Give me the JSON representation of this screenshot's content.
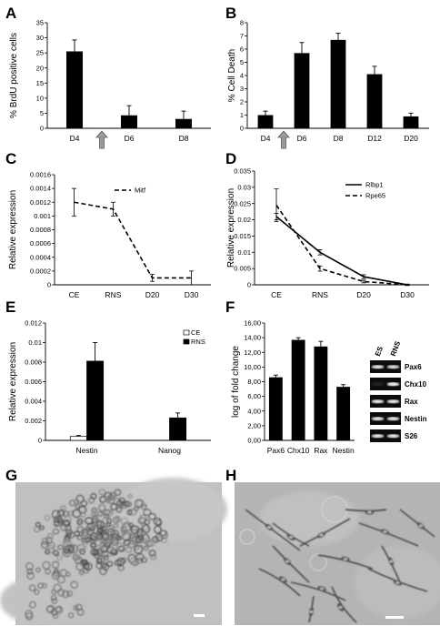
{
  "panels": [
    {
      "letter": "A"
    },
    {
      "letter": "B"
    },
    {
      "letter": "C"
    },
    {
      "letter": "D"
    },
    {
      "letter": "E"
    },
    {
      "letter": "F"
    },
    {
      "letter": "G"
    },
    {
      "letter": "H"
    }
  ],
  "chart_data": [
    {
      "id": "A",
      "type": "bar",
      "ylabel": "% BrdU positive cells",
      "categories": [
        "D4",
        "D6",
        "D8"
      ],
      "values": [
        25.5,
        4.3,
        3.1
      ],
      "errors": [
        3.8,
        3.2,
        2.6
      ],
      "ylim": [
        0,
        35
      ],
      "yticks": [
        "0",
        "5",
        "10",
        "15",
        "20",
        "25",
        "30",
        "35"
      ],
      "arrow_between": [
        "D4",
        "D6"
      ],
      "bar_color": "#000000"
    },
    {
      "id": "B",
      "type": "bar",
      "ylabel": "% Cell Death",
      "categories": [
        "D4",
        "D6",
        "D8",
        "D12",
        "D20"
      ],
      "values": [
        1.0,
        5.7,
        6.7,
        4.1,
        0.9
      ],
      "errors": [
        0.3,
        0.8,
        0.5,
        0.6,
        0.25
      ],
      "ylim": [
        0,
        8
      ],
      "yticks": [
        "0",
        "1",
        "2",
        "3",
        "4",
        "5",
        "6",
        "7",
        "8"
      ],
      "arrow_between": [
        "D4",
        "D6"
      ],
      "bar_color": "#000000"
    },
    {
      "id": "C",
      "type": "line",
      "ylabel": "Relative expression",
      "categories": [
        "CE",
        "RNS",
        "D20",
        "D30"
      ],
      "series": [
        {
          "name": "Mitf",
          "values": [
            0.0012,
            0.0011,
            0.0001,
            0.0001
          ],
          "errors": [
            0.0002,
            0.0001,
            5e-05,
            0.0001
          ],
          "dash": true
        }
      ],
      "ylim": [
        0,
        0.0016
      ],
      "yticks": [
        "0",
        "0.0002",
        "0.0004",
        "0.0006",
        "0.0008",
        "0.001",
        "0.0012",
        "0.0014",
        "0.0016"
      ]
    },
    {
      "id": "D",
      "type": "line",
      "ylabel": "Relative expression",
      "categories": [
        "CE",
        "RNS",
        "D20",
        "D30"
      ],
      "series": [
        {
          "name": "Rlbp1",
          "values": [
            0.021,
            0.01,
            0.0025,
            0.0
          ],
          "errors": [
            0.001,
            0.0008,
            0.0006,
            0.0002
          ],
          "dash": false
        },
        {
          "name": "Rpe65",
          "values": [
            0.0245,
            0.005,
            0.001,
            0.0
          ],
          "errors": [
            0.005,
            0.0008,
            0.0004,
            0.0002
          ],
          "dash": true
        }
      ],
      "ylim": [
        0,
        0.035
      ],
      "yticks": [
        "0",
        "0.005",
        "0.01",
        "0.015",
        "0.02",
        "0.025",
        "0.03",
        "0.035"
      ]
    },
    {
      "id": "E",
      "type": "bar",
      "ylabel": "Relative expression",
      "categories": [
        "Nestin",
        "Nanog"
      ],
      "series": [
        {
          "name": "CE",
          "values": [
            0.0004,
            0.0
          ],
          "errors": [
            0.0001,
            0.0
          ],
          "color": "#ffffff"
        },
        {
          "name": "RNS",
          "values": [
            0.0081,
            0.0023
          ],
          "errors": [
            0.0019,
            0.0005
          ],
          "color": "#000000"
        }
      ],
      "ylim": [
        0,
        0.012
      ],
      "yticks": [
        "0",
        "0.002",
        "0.004",
        "0.006",
        "0.008",
        "0.01",
        "0.012"
      ]
    },
    {
      "id": "F",
      "type": "bar",
      "ylabel": "log of fold change",
      "categories": [
        "Pax6",
        "Chx10",
        "Rax",
        "Nestin"
      ],
      "values": [
        8.6,
        13.7,
        12.8,
        7.3
      ],
      "errors": [
        0.3,
        0.3,
        0.7,
        0.3
      ],
      "ylim": [
        0,
        16
      ],
      "yticks": [
        "0,00",
        "2,00",
        "4,00",
        "6,00",
        "8,00",
        "10,00",
        "12,00",
        "14,00",
        "16,00"
      ],
      "bar_color": "#000000"
    }
  ],
  "gel": {
    "columns": [
      "ES",
      "RNS"
    ],
    "rows": [
      {
        "label": "Pax6",
        "es": 0.9,
        "rns": 0.85
      },
      {
        "label": "Chx10",
        "es": 0.1,
        "rns": 0.95
      },
      {
        "label": "Rax",
        "es": 0.9,
        "rns": 0.9
      },
      {
        "label": "Nestin",
        "es": 0.9,
        "rns": 0.9
      },
      {
        "label": "S26",
        "es": 0.9,
        "rns": 0.9
      }
    ]
  }
}
